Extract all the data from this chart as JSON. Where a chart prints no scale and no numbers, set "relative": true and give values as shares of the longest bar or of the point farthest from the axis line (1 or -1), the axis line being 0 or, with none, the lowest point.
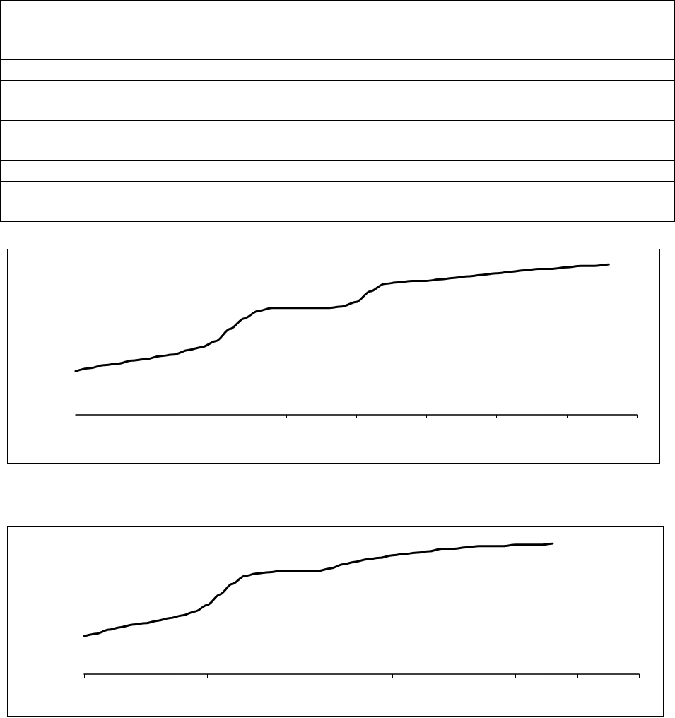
{
  "chart_data": [
    {
      "type": "line",
      "relative": true,
      "tick_labels": false,
      "marker": "none",
      "categories": [
        null,
        null,
        null,
        null,
        null,
        null,
        null,
        null,
        null,
        null,
        null,
        null,
        null,
        null,
        null,
        null,
        null,
        null,
        null,
        null,
        null,
        null,
        null,
        null,
        null,
        null,
        null,
        null,
        null,
        null,
        null,
        null,
        null,
        null,
        null,
        null,
        null,
        null,
        null,
        null,
        null
      ],
      "series": [
        {
          "color": "#000000",
          "values": [
            0.29,
            0.31,
            0.33,
            0.34,
            0.36,
            0.37,
            0.39,
            0.4,
            0.43,
            0.45,
            0.49,
            0.57,
            0.64,
            0.69,
            0.71,
            0.71,
            0.71,
            0.71,
            0.71,
            0.72,
            0.75,
            0.82,
            0.87,
            0.88,
            0.89,
            0.89,
            0.9,
            0.91,
            0.92,
            0.93,
            0.94,
            0.95,
            0.96,
            0.97,
            0.97,
            0.98,
            0.99,
            0.99,
            1,
            null,
            null
          ]
        }
      ]
    },
    {
      "type": "line",
      "relative": true,
      "tick_labels": false,
      "marker": "none",
      "categories": [
        null,
        null,
        null,
        null,
        null,
        null,
        null,
        null,
        null,
        null,
        null,
        null,
        null,
        null,
        null,
        null,
        null,
        null,
        null,
        null,
        null,
        null,
        null,
        null,
        null,
        null,
        null,
        null,
        null,
        null,
        null,
        null,
        null,
        null,
        null,
        null,
        null,
        null,
        null,
        null,
        null,
        null,
        null,
        null,
        null,
        null
      ],
      "series": [
        {
          "color": "#000000",
          "values": [
            0.29,
            0.31,
            0.34,
            0.36,
            0.38,
            0.39,
            0.41,
            0.43,
            0.45,
            0.48,
            0.53,
            0.61,
            0.69,
            0.75,
            0.77,
            0.78,
            0.79,
            0.79,
            0.79,
            0.79,
            0.81,
            0.84,
            0.86,
            0.88,
            0.89,
            0.91,
            0.92,
            0.93,
            0.94,
            0.96,
            0.96,
            0.97,
            0.98,
            0.98,
            0.98,
            0.99,
            0.99,
            0.99,
            1,
            null,
            null,
            null,
            null,
            null,
            null,
            null
          ]
        }
      ]
    }
  ]
}
